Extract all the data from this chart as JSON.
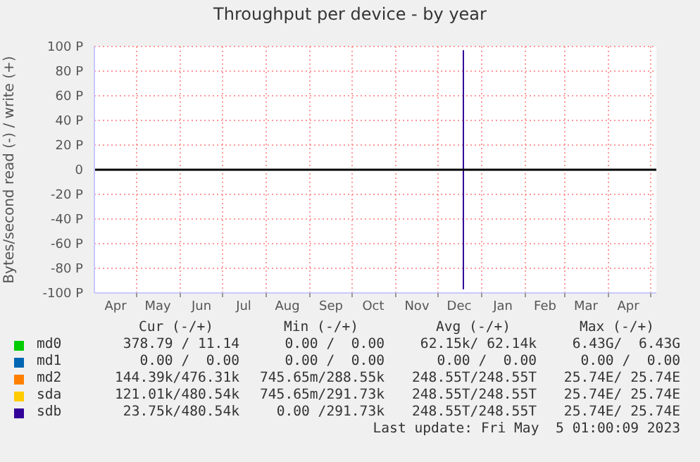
{
  "chart_data": {
    "type": "line",
    "title": "Throughput per device - by year",
    "ylabel": "Bytes/second read (-) / write (+)",
    "x": [
      "2022-12-19",
      "2022-12-19"
    ],
    "series": [
      {
        "name": "md0",
        "color": "#00cc00",
        "values": [
          null,
          null
        ]
      },
      {
        "name": "md1",
        "color": "#0066b3",
        "values": [
          null,
          null
        ]
      },
      {
        "name": "md2",
        "color": "#ff8000",
        "values": [
          null,
          null
        ]
      },
      {
        "name": "sda",
        "color": "#ffcc00",
        "values": [
          null,
          null
        ]
      },
      {
        "name": "sdb",
        "color": "#330099",
        "values": [
          97,
          -97
        ]
      }
    ],
    "xlim": [
      "2022-04-01",
      "2023-05-05"
    ],
    "xticks": [
      {
        "value": "2022-04-16",
        "label": "Apr"
      },
      {
        "value": "2022-05-01",
        "label": null
      },
      {
        "value": "2022-05-16",
        "label": "May"
      },
      {
        "value": "2022-06-01",
        "label": null
      },
      {
        "value": "2022-06-16",
        "label": "Jun"
      },
      {
        "value": "2022-07-01",
        "label": null
      },
      {
        "value": "2022-07-16",
        "label": "Jul"
      },
      {
        "value": "2022-08-01",
        "label": null
      },
      {
        "value": "2022-08-16",
        "label": "Aug"
      },
      {
        "value": "2022-09-01",
        "label": null
      },
      {
        "value": "2022-09-16",
        "label": "Sep"
      },
      {
        "value": "2022-10-01",
        "label": null
      },
      {
        "value": "2022-10-16",
        "label": "Oct"
      },
      {
        "value": "2022-11-01",
        "label": null
      },
      {
        "value": "2022-11-16",
        "label": "Nov"
      },
      {
        "value": "2022-12-01",
        "label": null
      },
      {
        "value": "2022-12-16",
        "label": "Dec"
      },
      {
        "value": "2023-01-01",
        "label": null
      },
      {
        "value": "2023-01-16",
        "label": "Jan"
      },
      {
        "value": "2023-02-01",
        "label": null
      },
      {
        "value": "2023-02-15",
        "label": "Feb"
      },
      {
        "value": "2023-03-01",
        "label": null
      },
      {
        "value": "2023-03-16",
        "label": "Mar"
      },
      {
        "value": "2023-04-01",
        "label": null
      },
      {
        "value": "2023-04-15",
        "label": "Apr"
      },
      {
        "value": "2023-05-01",
        "label": null
      }
    ],
    "ylim": [
      -100,
      100
    ],
    "yticks": [
      {
        "value": -100,
        "label": "-100 P"
      },
      {
        "value": -80,
        "label": "-80 P"
      },
      {
        "value": -60,
        "label": "-60 P"
      },
      {
        "value": -40,
        "label": "-40 P"
      },
      {
        "value": -20,
        "label": "-20 P"
      },
      {
        "value": 0,
        "label": "0"
      },
      {
        "value": 20,
        "label": "20 P"
      },
      {
        "value": 40,
        "label": "40 P"
      },
      {
        "value": 60,
        "label": "60 P"
      },
      {
        "value": 80,
        "label": "80 P"
      },
      {
        "value": 100,
        "label": "100 P"
      }
    ],
    "grid": true,
    "legend": "bottom",
    "marker": "none",
    "line_style": "solid",
    "ref_lines": [
      {
        "axis": "y",
        "value": 0,
        "color": "#000000"
      }
    ],
    "annotations": [
      "Cur (-/+)",
      "Min (-/+)",
      "Avg (-/+)",
      "Max (-/+)",
      "378.79 / 11.14",
      "0.00 /  0.00",
      "62.15k/ 62.14k",
      "6.43G/  6.43G",
      "0.00 /  0.00",
      "0.00 /  0.00",
      "0.00 /  0.00",
      "0.00 /  0.00",
      "144.39k/476.31k",
      "745.65m/288.55k",
      "248.55T/248.55T",
      "25.74E/ 25.74E",
      "121.01k/480.54k",
      "745.65m/291.73k",
      "248.55T/248.55T",
      "25.74E/ 25.74E",
      "23.75k/480.54k",
      "0.00 /291.73k",
      "248.55T/248.55T",
      "25.74E/ 25.74E",
      "Last update: Fri May  5 01:00:09 2023"
    ]
  }
}
